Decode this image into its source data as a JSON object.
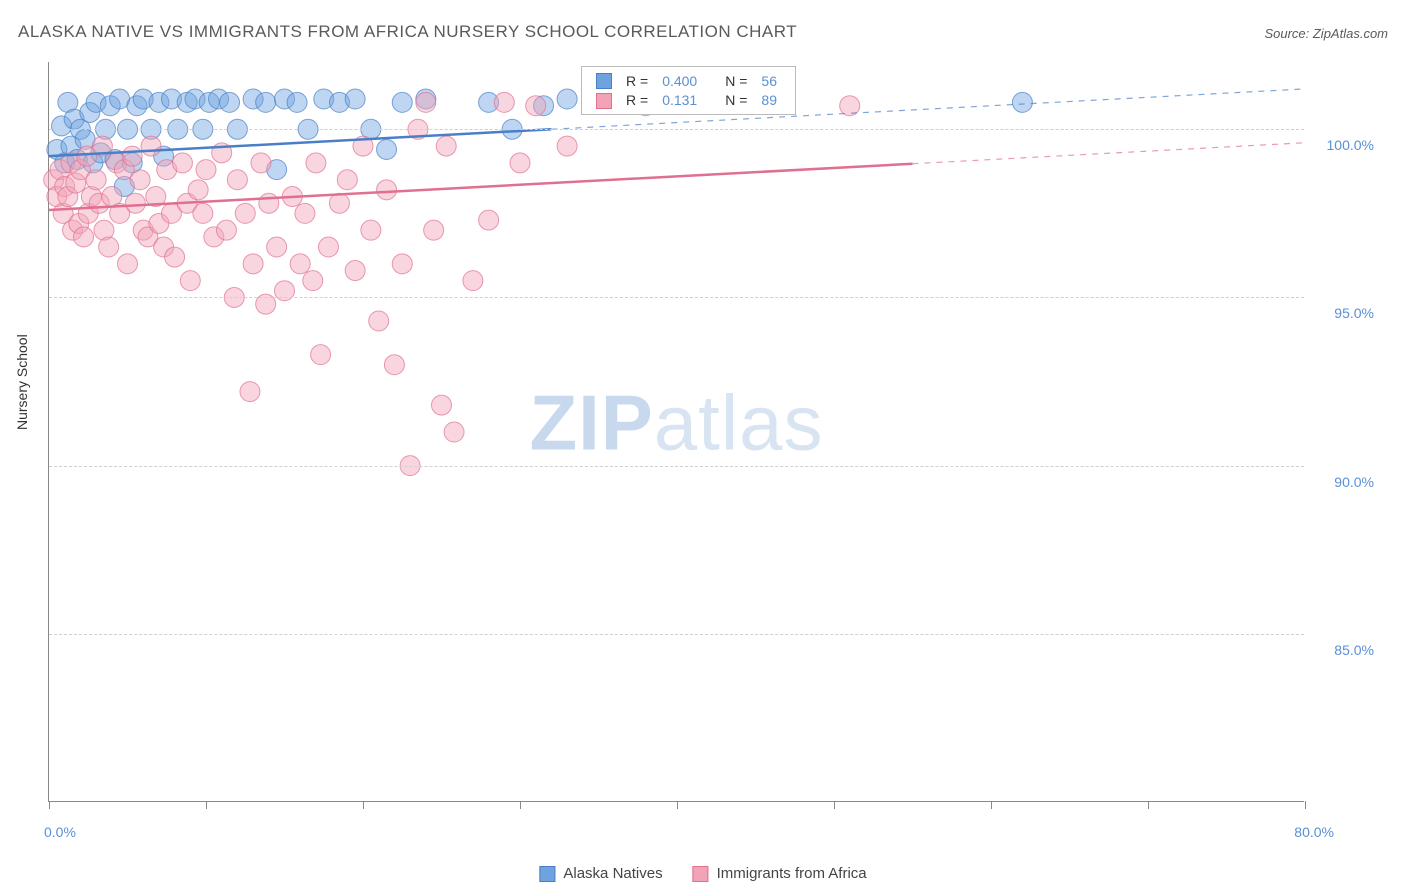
{
  "title": "ALASKA NATIVE VS IMMIGRANTS FROM AFRICA NURSERY SCHOOL CORRELATION CHART",
  "source_label": "Source: ZipAtlas.com",
  "watermark": {
    "bold": "ZIP",
    "rest": "atlas"
  },
  "y_axis_title": "Nursery School",
  "chart": {
    "type": "scatter",
    "xlim": [
      0,
      80
    ],
    "ylim": [
      80,
      102
    ],
    "x_ticks": [
      0,
      10,
      20,
      30,
      40,
      50,
      60,
      70,
      80
    ],
    "x_tick_labels": {
      "0": "0.0%",
      "80": "80.0%"
    },
    "y_ticks": [
      85,
      90,
      95,
      100
    ],
    "y_tick_labels": {
      "85": "85.0%",
      "90": "90.0%",
      "95": "95.0%",
      "100": "100.0%"
    },
    "grid_color": "#d0d0d0",
    "background_color": "#ffffff",
    "marker_radius": 10,
    "marker_opacity": 0.45,
    "series": [
      {
        "name": "Alaska Natives",
        "fill": "#6fa3e0",
        "stroke": "#4a7fc7",
        "r_value": "0.400",
        "n_value": "56",
        "trend": {
          "x1": 0,
          "y1": 99.2,
          "x2": 80,
          "y2": 101.2,
          "solid_until_x": 32
        },
        "points": [
          [
            0.5,
            99.4
          ],
          [
            0.8,
            100.1
          ],
          [
            1.0,
            99.0
          ],
          [
            1.2,
            100.8
          ],
          [
            1.4,
            99.5
          ],
          [
            1.6,
            100.3
          ],
          [
            1.8,
            99.1
          ],
          [
            2.0,
            100.0
          ],
          [
            2.3,
            99.7
          ],
          [
            2.6,
            100.5
          ],
          [
            2.8,
            99.0
          ],
          [
            3.0,
            100.8
          ],
          [
            3.3,
            99.3
          ],
          [
            3.6,
            100.0
          ],
          [
            3.9,
            100.7
          ],
          [
            4.2,
            99.1
          ],
          [
            4.5,
            100.9
          ],
          [
            4.8,
            98.3
          ],
          [
            5.0,
            100.0
          ],
          [
            5.3,
            99.0
          ],
          [
            5.6,
            100.7
          ],
          [
            6.0,
            100.9
          ],
          [
            6.5,
            100.0
          ],
          [
            7.0,
            100.8
          ],
          [
            7.3,
            99.2
          ],
          [
            7.8,
            100.9
          ],
          [
            8.2,
            100.0
          ],
          [
            8.8,
            100.8
          ],
          [
            9.3,
            100.9
          ],
          [
            9.8,
            100.0
          ],
          [
            10.2,
            100.8
          ],
          [
            10.8,
            100.9
          ],
          [
            11.5,
            100.8
          ],
          [
            12.0,
            100.0
          ],
          [
            13.0,
            100.9
          ],
          [
            13.8,
            100.8
          ],
          [
            14.5,
            98.8
          ],
          [
            15.0,
            100.9
          ],
          [
            15.8,
            100.8
          ],
          [
            16.5,
            100.0
          ],
          [
            17.5,
            100.9
          ],
          [
            18.5,
            100.8
          ],
          [
            19.5,
            100.9
          ],
          [
            20.5,
            100.0
          ],
          [
            21.5,
            99.4
          ],
          [
            22.5,
            100.8
          ],
          [
            24.0,
            100.9
          ],
          [
            28.0,
            100.8
          ],
          [
            29.5,
            100.0
          ],
          [
            31.5,
            100.7
          ],
          [
            33.0,
            100.9
          ],
          [
            35.0,
            100.8
          ],
          [
            37.0,
            100.9
          ],
          [
            40.0,
            100.8
          ],
          [
            43.0,
            100.9
          ],
          [
            62.0,
            100.8
          ]
        ]
      },
      {
        "name": "Immigrants from Africa",
        "fill": "#f2a3b8",
        "stroke": "#e0708f",
        "r_value": "0.131",
        "n_value": "89",
        "trend": {
          "x1": 0,
          "y1": 97.6,
          "x2": 80,
          "y2": 99.6,
          "solid_until_x": 55
        },
        "points": [
          [
            0.3,
            98.5
          ],
          [
            0.5,
            98.0
          ],
          [
            0.7,
            98.8
          ],
          [
            0.9,
            97.5
          ],
          [
            1.0,
            98.3
          ],
          [
            1.2,
            98.0
          ],
          [
            1.4,
            99.0
          ],
          [
            1.5,
            97.0
          ],
          [
            1.7,
            98.4
          ],
          [
            1.9,
            97.2
          ],
          [
            2.0,
            98.8
          ],
          [
            2.2,
            96.8
          ],
          [
            2.4,
            99.2
          ],
          [
            2.5,
            97.5
          ],
          [
            2.7,
            98.0
          ],
          [
            3.0,
            98.5
          ],
          [
            3.2,
            97.8
          ],
          [
            3.4,
            99.5
          ],
          [
            3.5,
            97.0
          ],
          [
            3.8,
            96.5
          ],
          [
            4.0,
            98.0
          ],
          [
            4.3,
            99.0
          ],
          [
            4.5,
            97.5
          ],
          [
            4.8,
            98.8
          ],
          [
            5.0,
            96.0
          ],
          [
            5.3,
            99.2
          ],
          [
            5.5,
            97.8
          ],
          [
            5.8,
            98.5
          ],
          [
            6.0,
            97.0
          ],
          [
            6.3,
            96.8
          ],
          [
            6.5,
            99.5
          ],
          [
            6.8,
            98.0
          ],
          [
            7.0,
            97.2
          ],
          [
            7.3,
            96.5
          ],
          [
            7.5,
            98.8
          ],
          [
            7.8,
            97.5
          ],
          [
            8.0,
            96.2
          ],
          [
            8.5,
            99.0
          ],
          [
            8.8,
            97.8
          ],
          [
            9.0,
            95.5
          ],
          [
            9.5,
            98.2
          ],
          [
            9.8,
            97.5
          ],
          [
            10.0,
            98.8
          ],
          [
            10.5,
            96.8
          ],
          [
            11.0,
            99.3
          ],
          [
            11.3,
            97.0
          ],
          [
            11.8,
            95.0
          ],
          [
            12.0,
            98.5
          ],
          [
            12.5,
            97.5
          ],
          [
            12.8,
            92.2
          ],
          [
            13.0,
            96.0
          ],
          [
            13.5,
            99.0
          ],
          [
            13.8,
            94.8
          ],
          [
            14.0,
            97.8
          ],
          [
            14.5,
            96.5
          ],
          [
            15.0,
            95.2
          ],
          [
            15.5,
            98.0
          ],
          [
            16.0,
            96.0
          ],
          [
            16.3,
            97.5
          ],
          [
            16.8,
            95.5
          ],
          [
            17.0,
            99.0
          ],
          [
            17.3,
            93.3
          ],
          [
            17.8,
            96.5
          ],
          [
            18.5,
            97.8
          ],
          [
            19.0,
            98.5
          ],
          [
            19.5,
            95.8
          ],
          [
            20.0,
            99.5
          ],
          [
            20.5,
            97.0
          ],
          [
            21.0,
            94.3
          ],
          [
            21.5,
            98.2
          ],
          [
            22.0,
            93.0
          ],
          [
            22.5,
            96.0
          ],
          [
            23.0,
            90.0
          ],
          [
            23.5,
            100.0
          ],
          [
            24.0,
            100.8
          ],
          [
            24.5,
            97.0
          ],
          [
            25.0,
            91.8
          ],
          [
            25.3,
            99.5
          ],
          [
            25.8,
            91.0
          ],
          [
            27.0,
            95.5
          ],
          [
            28.0,
            97.3
          ],
          [
            29.0,
            100.8
          ],
          [
            30.0,
            99.0
          ],
          [
            31.0,
            100.7
          ],
          [
            33.0,
            99.5
          ],
          [
            36.5,
            100.8
          ],
          [
            38.0,
            100.7
          ],
          [
            41.0,
            100.8
          ],
          [
            51.0,
            100.7
          ]
        ]
      }
    ]
  },
  "legend_box": {
    "r_label": "R =",
    "n_label": "N ="
  },
  "bottom_legend": {
    "items": [
      "Alaska Natives",
      "Immigrants from Africa"
    ]
  }
}
